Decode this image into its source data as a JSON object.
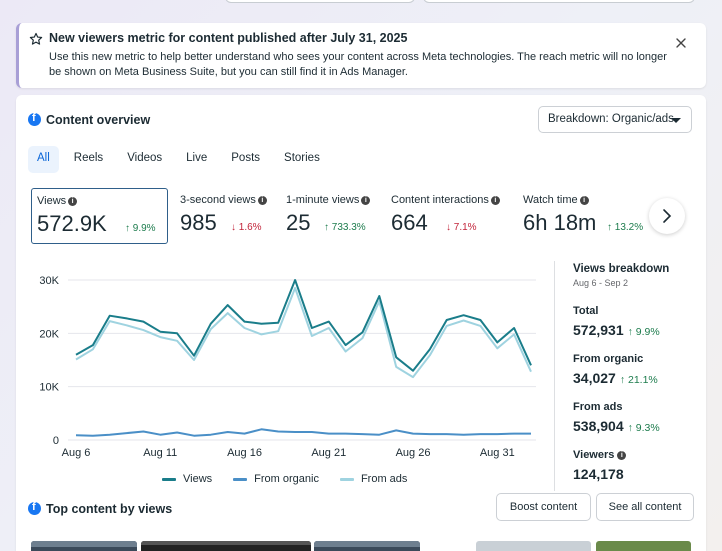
{
  "banner": {
    "title": "New viewers metric for content published after July 31, 2025",
    "body": "Use this new metric to help better understand who sees your content across Meta technologies. The reach metric will no longer be shown on Meta Business Suite, but you can still find it in Ads Manager."
  },
  "overview": {
    "title": "Content overview",
    "breakdown_label": "Breakdown: Organic/ads",
    "tabs": [
      "All",
      "Reels",
      "Videos",
      "Live",
      "Posts",
      "Stories"
    ],
    "metrics": [
      {
        "label": "Views",
        "value": "572.9K",
        "delta": "9.9%",
        "dir": "up"
      },
      {
        "label": "3-second views",
        "value": "985",
        "delta": "1.6%",
        "dir": "down"
      },
      {
        "label": "1-minute views",
        "value": "25",
        "delta": "733.3%",
        "dir": "up"
      },
      {
        "label": "Content interactions",
        "value": "664",
        "delta": "7.1%",
        "dir": "down"
      },
      {
        "label": "Watch time",
        "value": "6h 18m",
        "delta": "13.2%",
        "dir": "up"
      }
    ]
  },
  "chart_data": {
    "type": "line",
    "x": [
      "Aug 6",
      "Aug 7",
      "Aug 8",
      "Aug 9",
      "Aug 10",
      "Aug 11",
      "Aug 12",
      "Aug 13",
      "Aug 14",
      "Aug 15",
      "Aug 16",
      "Aug 17",
      "Aug 18",
      "Aug 19",
      "Aug 20",
      "Aug 21",
      "Aug 22",
      "Aug 23",
      "Aug 24",
      "Aug 25",
      "Aug 26",
      "Aug 27",
      "Aug 28",
      "Aug 29",
      "Aug 30",
      "Aug 31",
      "Sep 1",
      "Sep 2"
    ],
    "xticks": [
      "Aug 6",
      "Aug 11",
      "Aug 16",
      "Aug 21",
      "Aug 26",
      "Aug 31"
    ],
    "yticks": [
      "0",
      "10K",
      "20K",
      "30K"
    ],
    "ylim": [
      0,
      30000
    ],
    "series": [
      {
        "name": "Views",
        "color": "#1a7d8a",
        "values": [
          16000,
          17800,
          23300,
          22800,
          22200,
          20300,
          20000,
          15800,
          21800,
          25300,
          22200,
          21800,
          22000,
          30000,
          21000,
          22200,
          17800,
          20200,
          27000,
          15500,
          13000,
          17000,
          22500,
          23400,
          22500,
          18300,
          21000,
          14000
        ]
      },
      {
        "name": "From organic",
        "color": "#4a8fc7",
        "values": [
          900,
          800,
          1000,
          1300,
          1600,
          1000,
          1400,
          800,
          1000,
          1500,
          1200,
          2000,
          1600,
          1500,
          1500,
          1200,
          1200,
          1100,
          1000,
          1800,
          1200,
          1100,
          1100,
          1000,
          1100,
          1100,
          1200,
          1200
        ]
      },
      {
        "name": "From ads",
        "color": "#9fd3e0",
        "values": [
          15100,
          17000,
          22300,
          21500,
          20600,
          19300,
          18600,
          15000,
          20800,
          23800,
          21000,
          19800,
          20400,
          28500,
          19500,
          21000,
          16600,
          19100,
          26000,
          13700,
          11800,
          15900,
          21400,
          22400,
          21400,
          17200,
          19800,
          12800
        ]
      }
    ],
    "legend": "bottom",
    "grid": true
  },
  "views_breakdown": {
    "title": "Views breakdown",
    "date_range": "Aug 6 - Sep 2",
    "rows": [
      {
        "label": "Total",
        "value": "572,931",
        "delta": "9.9%"
      },
      {
        "label": "From organic",
        "value": "34,027",
        "delta": "21.1%"
      },
      {
        "label": "From ads",
        "value": "538,904",
        "delta": "9.3%"
      },
      {
        "label": "Viewers",
        "value": "124,178",
        "delta": ""
      }
    ]
  },
  "top_content": {
    "title": "Top content by views",
    "boost_label": "Boost content",
    "see_all_label": "See all content"
  }
}
